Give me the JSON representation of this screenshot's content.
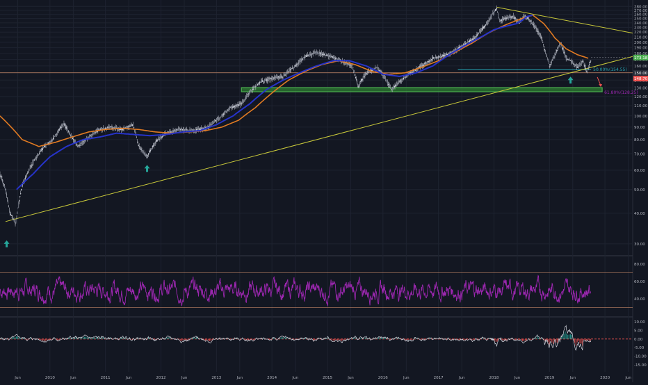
{
  "colors": {
    "background": "#131722",
    "grid": "#1e2330",
    "axis_text": "#b2b5be",
    "candle": "#cfd2dc",
    "ma_fast": "#2633c9",
    "ma_slow": "#e07a22",
    "trendline": "#c8c83a",
    "horizontal": "#c98a6a",
    "fib": "#26a6b5",
    "support_zone": "#2e7d32",
    "support_edge": "#4caf50",
    "arrow_up": "#26a69a",
    "arrow_down": "#ef5350",
    "oscillator": "#9c27b0",
    "price_badge_green": "#4caf50",
    "price_badge_red": "#ef5350",
    "price_badge_dark": "#2a2e39"
  },
  "chart_data": [
    {
      "type": "line",
      "panel": "price",
      "scale": "log",
      "ylim": [
        27,
        288
      ],
      "y_ticks": [
        30,
        40,
        50,
        60,
        70,
        80,
        90,
        100,
        110,
        120,
        130,
        140,
        150,
        160,
        170,
        180,
        190,
        200,
        210,
        220,
        230,
        240,
        250,
        260,
        270,
        280
      ],
      "y_tick_labels": [
        "30.00",
        "40.00",
        "50.00",
        "60.00",
        "70.00",
        "80.00",
        "90.00",
        "100.00",
        "110.00",
        "120.00",
        "130.00",
        "140.00",
        "150.00",
        "160.00",
        "170.00",
        "180.00",
        "190.00",
        "200.00",
        "210.00",
        "220.00",
        "230.00",
        "240.00",
        "250.00",
        "260.00",
        "270.00",
        "280.00"
      ],
      "x_axis_labels": [
        "Jun",
        "2010",
        "Jun",
        "2011",
        "Jun",
        "2012",
        "Jun",
        "2013",
        "Jun",
        "2014",
        "Jun",
        "2015",
        "Jun",
        "2016",
        "Jun",
        "2017",
        "Jun",
        "2018",
        "Jun",
        "2019",
        "Jun",
        "2020",
        "Jun"
      ],
      "x_axis_positions": [
        2009.42,
        2010.0,
        2010.42,
        2011.0,
        2011.42,
        2012.0,
        2012.42,
        2013.0,
        2013.42,
        2014.0,
        2014.42,
        2015.0,
        2015.42,
        2016.0,
        2016.42,
        2017.0,
        2017.42,
        2018.0,
        2018.42,
        2019.0,
        2019.42,
        2020.0,
        2020.42
      ],
      "xlim": [
        2009.1,
        2020.5
      ],
      "series": [
        {
          "kind": "price",
          "x": [
            2009.1,
            2009.2,
            2009.28,
            2009.38,
            2009.5,
            2009.7,
            2009.9,
            2010.05,
            2010.25,
            2010.35,
            2010.5,
            2010.7,
            2010.9,
            2011.1,
            2011.3,
            2011.5,
            2011.6,
            2011.75,
            2011.9,
            2012.1,
            2012.3,
            2012.6,
            2012.85,
            2013.05,
            2013.25,
            2013.45,
            2013.6,
            2013.8,
            2014.0,
            2014.2,
            2014.4,
            2014.6,
            2014.8,
            2014.95,
            2015.05,
            2015.25,
            2015.45,
            2015.55,
            2015.7,
            2015.9,
            2016.02,
            2016.15,
            2016.3,
            2016.5,
            2016.7,
            2016.9,
            2017.05,
            2017.25,
            2017.45,
            2017.65,
            2017.85,
            2017.98,
            2018.05,
            2018.1,
            2018.2,
            2018.35,
            2018.45,
            2018.55,
            2018.65,
            2018.75,
            2018.85,
            2018.92,
            2019.0,
            2019.1,
            2019.2,
            2019.3,
            2019.38,
            2019.5,
            2019.6,
            2019.68,
            2019.75
          ],
          "values": [
            58,
            50,
            40,
            36,
            52,
            65,
            75,
            80,
            93,
            85,
            75,
            82,
            88,
            90,
            88,
            92,
            75,
            68,
            78,
            85,
            88,
            87,
            90,
            98,
            108,
            112,
            125,
            138,
            142,
            145,
            158,
            175,
            182,
            178,
            175,
            168,
            160,
            132,
            150,
            158,
            145,
            128,
            138,
            150,
            160,
            172,
            175,
            182,
            195,
            208,
            235,
            262,
            275,
            245,
            250,
            255,
            240,
            258,
            245,
            230,
            210,
            185,
            160,
            178,
            198,
            172,
            168,
            158,
            168,
            150,
            170
          ]
        },
        {
          "kind": "ma_fast",
          "x": [
            2009.4,
            2009.7,
            2010.0,
            2010.3,
            2010.6,
            2010.9,
            2011.2,
            2011.5,
            2011.8,
            2012.1,
            2012.4,
            2012.7,
            2013.0,
            2013.3,
            2013.6,
            2013.9,
            2014.2,
            2014.5,
            2014.8,
            2015.1,
            2015.4,
            2015.7,
            2016.0,
            2016.3,
            2016.6,
            2016.9,
            2017.2,
            2017.5,
            2017.8,
            2018.0,
            2018.2,
            2018.4,
            2018.5,
            2018.6,
            2018.7
          ],
          "values": [
            50,
            58,
            68,
            75,
            80,
            82,
            85,
            84,
            83,
            84,
            86,
            87,
            92,
            100,
            112,
            128,
            140,
            150,
            160,
            168,
            168,
            160,
            148,
            145,
            150,
            160,
            178,
            195,
            212,
            225,
            232,
            238,
            245,
            255,
            258
          ]
        },
        {
          "kind": "ma_slow",
          "x": [
            2009.1,
            2009.3,
            2009.5,
            2009.8,
            2010.1,
            2010.4,
            2010.7,
            2011.0,
            2011.3,
            2011.6,
            2011.9,
            2012.2,
            2012.5,
            2012.8,
            2013.1,
            2013.4,
            2013.7,
            2014.0,
            2014.3,
            2014.6,
            2014.9,
            2015.2,
            2015.5,
            2015.8,
            2016.1,
            2016.4,
            2016.7,
            2017.0,
            2017.3,
            2017.6,
            2017.9,
            2018.2,
            2018.5,
            2018.7,
            2018.9,
            2019.1,
            2019.3,
            2019.5,
            2019.7
          ],
          "values": [
            100,
            90,
            80,
            75,
            78,
            82,
            86,
            88,
            89,
            88,
            86,
            85,
            86,
            87,
            90,
            96,
            108,
            124,
            140,
            152,
            162,
            168,
            162,
            152,
            148,
            150,
            158,
            168,
            182,
            198,
            218,
            235,
            250,
            258,
            238,
            208,
            188,
            178,
            172
          ]
        }
      ],
      "annotations": {
        "fib_label": "50.00%(154.55)",
        "fib_value": 154.55,
        "fib_x_range": [
          2017.35,
          2019.75
        ],
        "support_zone_label": "61.80%(128.25)",
        "support_zone": [
          125.5,
          130.5
        ],
        "support_zone_x_range": [
          2013.45,
          2019.95
        ],
        "horizontal_level": 150.0,
        "trendline_lower": {
          "from": [
            2009.2,
            37
          ],
          "to": [
            2020.5,
            175
          ]
        },
        "trendline_upper": {
          "from": [
            2018.05,
            278
          ],
          "to": [
            2020.5,
            218
          ]
        },
        "up_arrows": [
          {
            "x": 2009.22,
            "y": 30
          },
          {
            "x": 2011.75,
            "y": 61
          },
          {
            "x": 2019.38,
            "y": 140
          }
        ],
        "down_arrow": {
          "x": 2019.9,
          "from": 144,
          "to": 133
        }
      },
      "price_badges": [
        {
          "label": "173.18",
          "value": 173.18,
          "style": "green"
        },
        {
          "label": "150.00",
          "value": 150.0,
          "style": "dark"
        },
        {
          "label": "148.70",
          "value": 148.7,
          "style": "red"
        }
      ]
    },
    {
      "type": "line",
      "panel": "oscillator",
      "ylim": [
        20,
        88
      ],
      "y_ticks": [
        40,
        60,
        80
      ],
      "y_tick_labels": [
        "40.00",
        "60.00",
        "80.00"
      ],
      "bands": [
        70,
        30
      ],
      "series": [
        {
          "name": "",
          "x_start": 2009.1,
          "x_end": 2019.75,
          "seed": 7
        }
      ]
    },
    {
      "type": "bar",
      "panel": "histogram",
      "ylim": [
        -19,
        12
      ],
      "y_ticks": [
        -15,
        -10,
        -5,
        0,
        5,
        10
      ],
      "y_tick_labels": [
        "-15.00",
        "-10.00",
        "-5.00",
        "0.00",
        "5.00",
        "10.00"
      ]
    }
  ]
}
